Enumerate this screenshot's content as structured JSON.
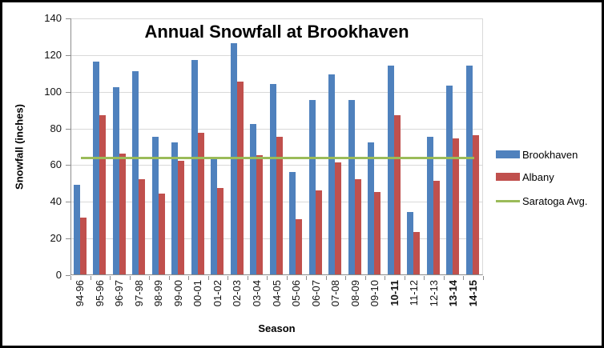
{
  "chart_data": {
    "type": "bar",
    "title": "Annual Snowfall at Brookhaven",
    "xlabel": "Season",
    "ylabel": "Snowfall (inches)",
    "ylim": [
      0,
      140
    ],
    "yticks": [
      0,
      20,
      40,
      60,
      80,
      100,
      120,
      140
    ],
    "grid": true,
    "legend_position": "right",
    "categories": [
      "94-96",
      "95-96",
      "96-97",
      "97-98",
      "98-99",
      "99-00",
      "00-01",
      "01-02",
      "02-03",
      "03-04",
      "04-05",
      "05-06",
      "06-07",
      "07-08",
      "08-09",
      "09-10",
      "10-11",
      "11-12",
      "12-13",
      "13-14",
      "14-15"
    ],
    "bold_categories": [
      "10-11",
      "13-14",
      "14-15"
    ],
    "series": [
      {
        "name": "Brookhaven",
        "type": "bar",
        "color": "#4F81BD",
        "values": [
          49,
          116,
          102,
          111,
          75,
          72,
          117,
          63,
          126,
          82,
          104,
          56,
          95,
          109,
          95,
          72,
          114,
          34,
          75,
          103,
          114
        ]
      },
      {
        "name": "Albany",
        "type": "bar",
        "color": "#C0504D",
        "values": [
          31,
          87,
          66,
          52,
          44,
          62,
          77,
          47,
          105,
          65,
          75,
          30,
          46,
          61,
          52,
          45,
          87,
          23,
          51,
          74,
          76
        ]
      },
      {
        "name": "Saratoga Avg.",
        "type": "line",
        "color": "#9BBB59",
        "value": 64
      }
    ]
  },
  "colors": {
    "gridline": "#D9D9D9",
    "axis": "#8C8C8C",
    "text": "#000000",
    "frame_border": "#000000"
  }
}
